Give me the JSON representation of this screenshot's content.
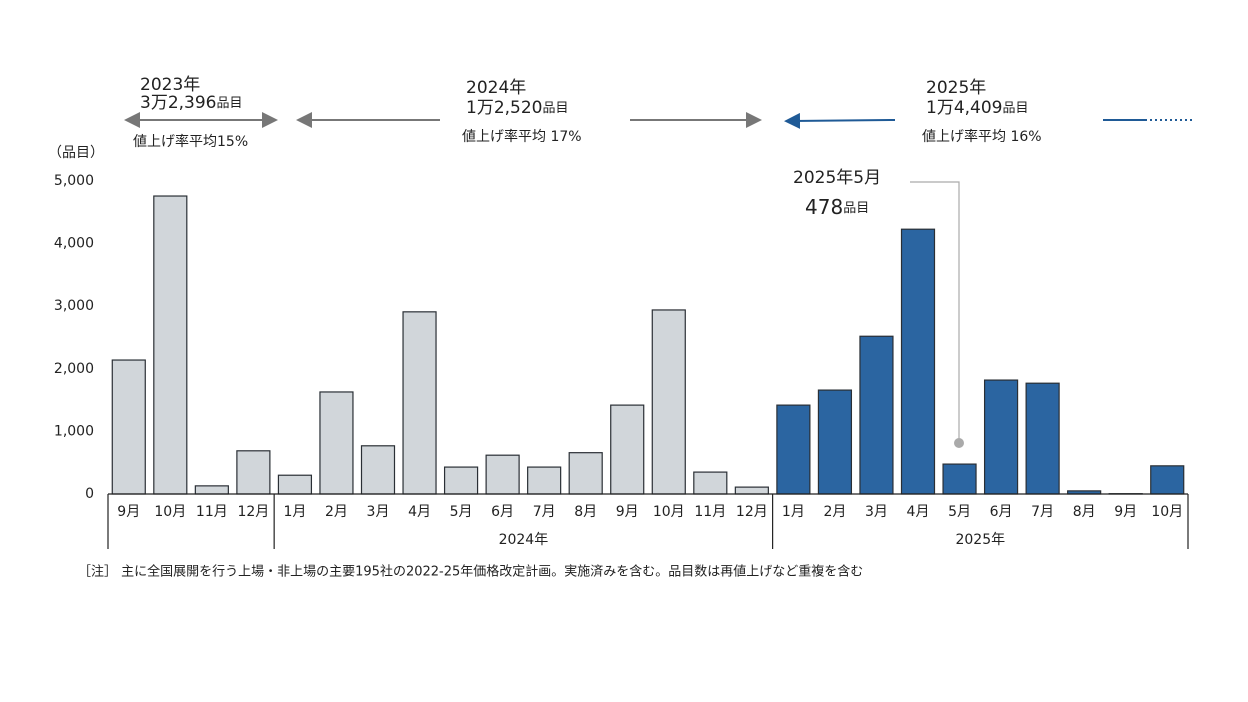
{
  "chart_data": {
    "type": "bar",
    "y_label": "（品目）",
    "ylim": [
      0,
      5000
    ],
    "yticks": [
      0,
      {
        "value": 1000,
        "label": "1,000"
      },
      {
        "value": 2000,
        "label": "2,000"
      },
      {
        "value": 3000,
        "label": "3,000"
      },
      {
        "value": 4000,
        "label": "4,000"
      },
      {
        "value": 5000,
        "label": "5,000"
      }
    ],
    "periods": [
      {
        "year": "2023年",
        "total": "3万2,396",
        "unit": "品目",
        "rate": "値上げ率平均15%",
        "color": "#d1d6da",
        "categories": [
          "9月",
          "10月",
          "11月",
          "12月"
        ],
        "values": [
          2140,
          4760,
          130,
          690
        ]
      },
      {
        "year": "2024年",
        "total": "1万2,520",
        "unit": "品目",
        "rate": "値上げ率平均  17%",
        "color": "#d1d6da",
        "axis_label": "2024年",
        "categories": [
          "1月",
          "2月",
          "3月",
          "4月",
          "5月",
          "6月",
          "7月",
          "8月",
          "9月",
          "10月",
          "11月",
          "12月"
        ],
        "values": [
          300,
          1630,
          770,
          2910,
          430,
          620,
          430,
          660,
          1420,
          2940,
          350,
          110
        ]
      },
      {
        "year": "2025年",
        "total": "1万4,409",
        "unit": "品目",
        "rate": "値上げ率平均  16%",
        "color": "#2b65a1",
        "axis_label": "2025年",
        "categories": [
          "1月",
          "2月",
          "3月",
          "4月",
          "5月",
          "6月",
          "7月",
          "8月",
          "9月",
          "10月"
        ],
        "values": [
          1420,
          1660,
          2520,
          4230,
          478,
          1820,
          1770,
          50,
          5,
          450
        ]
      }
    ],
    "annotation": {
      "title": "2025年5月",
      "text": "478",
      "unit": "品目"
    },
    "note": "［注］ 主に全国展開を行う上場・非上場の主要195社の2022-25年価格改定計画。実施済みを含む。品目数は再値上げなど重複を含む"
  }
}
